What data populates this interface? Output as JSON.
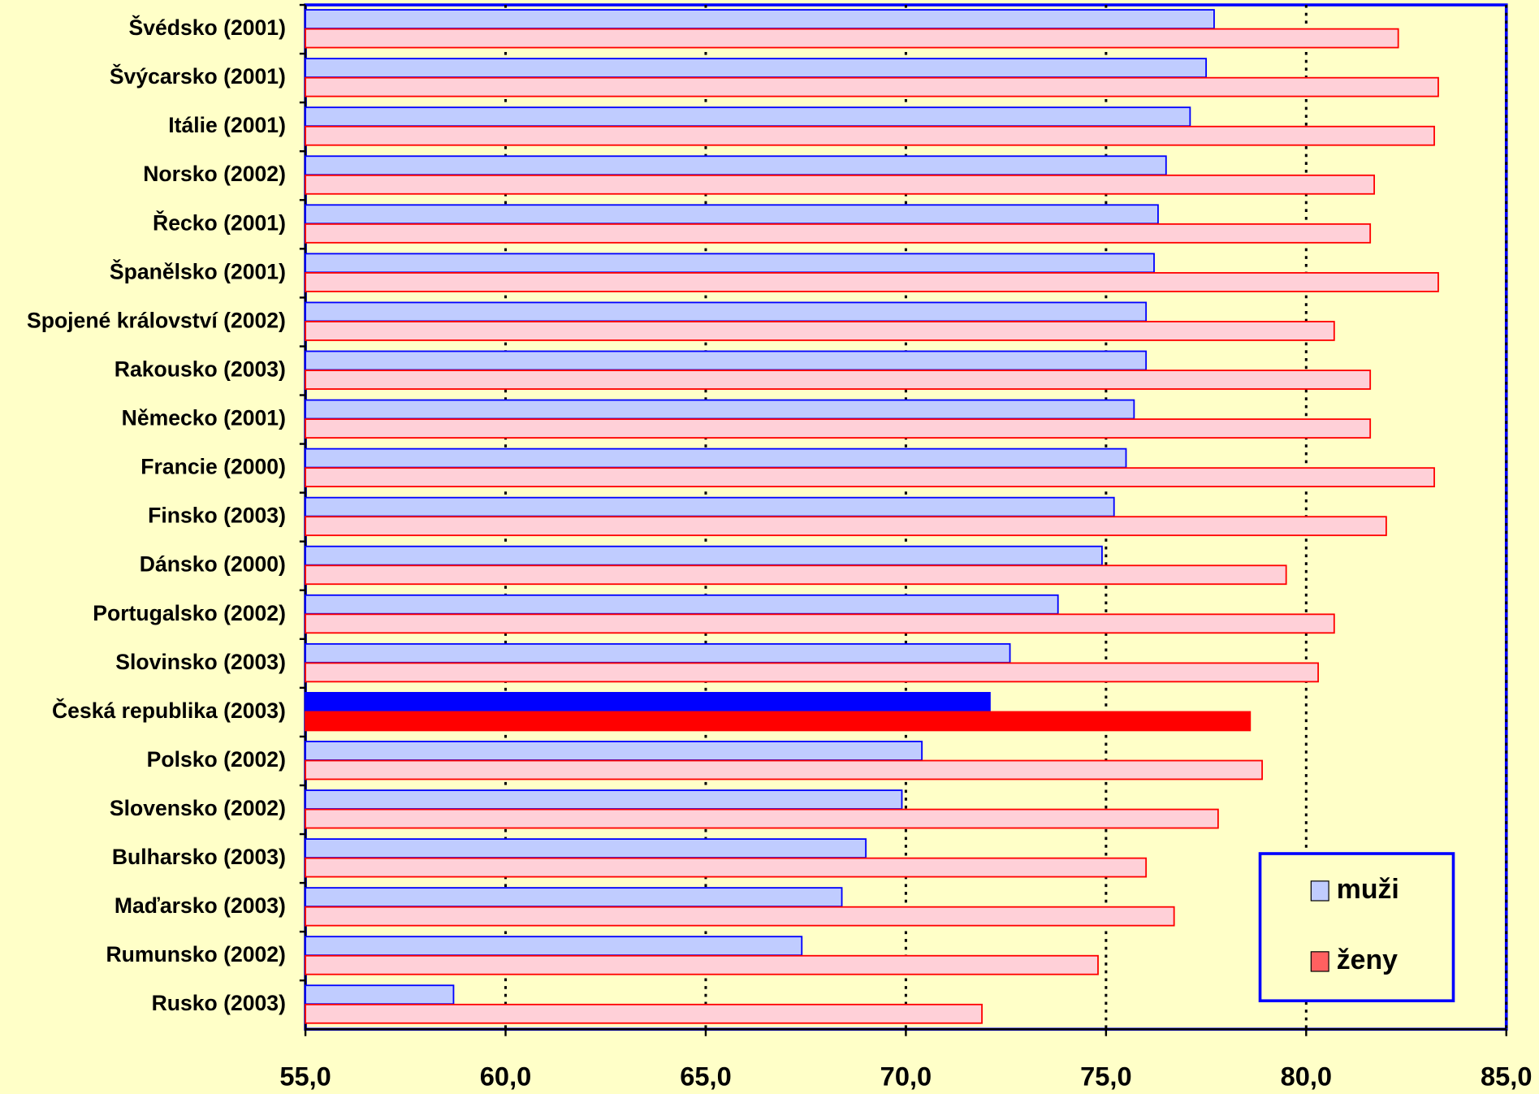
{
  "chart_data": {
    "type": "hbar",
    "categories": [
      "Švédsko (2001)",
      "Švýcarsko (2001)",
      "Itálie (2001)",
      "Norsko (2002)",
      "Řecko (2001)",
      "Španělsko (2001)",
      "Spojené království (2002)",
      "Rakousko (2003)",
      "Německo (2001)",
      "Francie (2000)",
      "Finsko (2003)",
      "Dánsko (2000)",
      "Portugalsko (2002)",
      "Slovinsko (2003)",
      "Česká republika (2003)",
      "Polsko (2002)",
      "Slovensko (2002)",
      "Bulharsko (2003)",
      "Maďarsko (2003)",
      "Rumunsko (2002)",
      "Rusko (2003)"
    ],
    "series": [
      {
        "name": "muži",
        "color": "#c0ccff",
        "edge_color": "#0000ff",
        "highlight_color": "#0000ff",
        "values": [
          77.7,
          77.5,
          77.1,
          76.5,
          76.3,
          76.2,
          76.0,
          76.0,
          75.7,
          75.5,
          75.2,
          74.9,
          73.8,
          72.6,
          72.1,
          70.4,
          69.9,
          69.0,
          68.4,
          67.4,
          58.7
        ]
      },
      {
        "name": "ženy",
        "color": "#ffd0d8",
        "edge_color": "#ff0000",
        "highlight_color": "#ff0000",
        "values": [
          82.3,
          83.3,
          83.2,
          81.7,
          81.6,
          83.3,
          80.7,
          81.6,
          81.6,
          83.2,
          82.0,
          79.5,
          80.7,
          80.3,
          78.6,
          78.9,
          77.8,
          76.0,
          76.7,
          74.8,
          71.9
        ]
      }
    ],
    "highlight_index": 14,
    "xlim": [
      55,
      85
    ],
    "xticks": [
      {
        "value": 55,
        "label": "55,0"
      },
      {
        "value": 60,
        "label": "60,0"
      },
      {
        "value": 65,
        "label": "65,0"
      },
      {
        "value": 70,
        "label": "70,0"
      },
      {
        "value": 75,
        "label": "75,0"
      },
      {
        "value": 80,
        "label": "80,0"
      },
      {
        "value": 85,
        "label": "85,0"
      }
    ],
    "grid": true,
    "legend": "lower right"
  }
}
